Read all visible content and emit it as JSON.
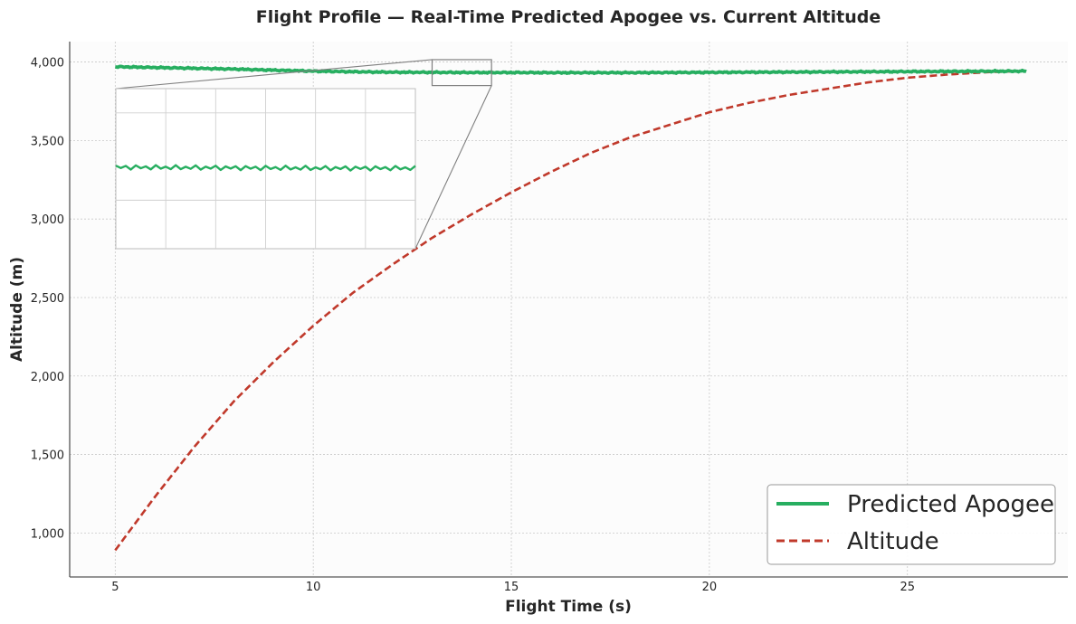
{
  "chart_data": {
    "type": "line",
    "title": "Flight Profile — Real-Time Predicted Apogee vs. Current Altitude",
    "xlabel": "Flight Time (s)",
    "ylabel": "Altitude (m)",
    "xlim": [
      3.85,
      29.05
    ],
    "ylim": [
      720,
      4130
    ],
    "xticks": [
      5,
      10,
      15,
      20,
      25
    ],
    "xtick_labels": [
      "5",
      "10",
      "15",
      "20",
      "25"
    ],
    "yticks": [
      1000,
      1500,
      2000,
      2500,
      3000,
      3500,
      4000
    ],
    "ytick_labels": [
      "1,000",
      "1,500",
      "2,000",
      "2,500",
      "3,000",
      "3,500",
      "4,000"
    ],
    "grid": true,
    "legend_position": "bottom-right",
    "series": [
      {
        "name": "Predicted Apogee",
        "color": "#27ae60",
        "style": "solid",
        "x": [
          5,
          6,
          7,
          8,
          9,
          10,
          11,
          12,
          13,
          14,
          15,
          16,
          17,
          18,
          19,
          20,
          21,
          22,
          23,
          24,
          25,
          26,
          27,
          28
        ],
        "y": [
          3970,
          3965,
          3960,
          3955,
          3948,
          3942,
          3938,
          3935,
          3934,
          3933,
          3933,
          3932,
          3932,
          3932,
          3933,
          3934,
          3935,
          3936,
          3937,
          3938,
          3939,
          3940,
          3941,
          3942
        ]
      },
      {
        "name": "Altitude",
        "color": "#c0392b",
        "style": "dashed",
        "x": [
          5,
          6,
          7,
          8,
          9,
          10,
          11,
          12,
          13,
          14,
          15,
          16,
          17,
          18,
          19,
          20,
          21,
          22,
          23,
          24,
          25,
          26,
          27,
          28
        ],
        "y": [
          890,
          1230,
          1550,
          1840,
          2090,
          2320,
          2530,
          2710,
          2880,
          3030,
          3170,
          3300,
          3420,
          3520,
          3600,
          3680,
          3740,
          3790,
          3830,
          3870,
          3900,
          3920,
          3935,
          3943
        ]
      }
    ],
    "inset": {
      "xlim": [
        13.0,
        14.5
      ],
      "ylim": [
        3850,
        4015
      ],
      "series": "Predicted Apogee"
    }
  }
}
